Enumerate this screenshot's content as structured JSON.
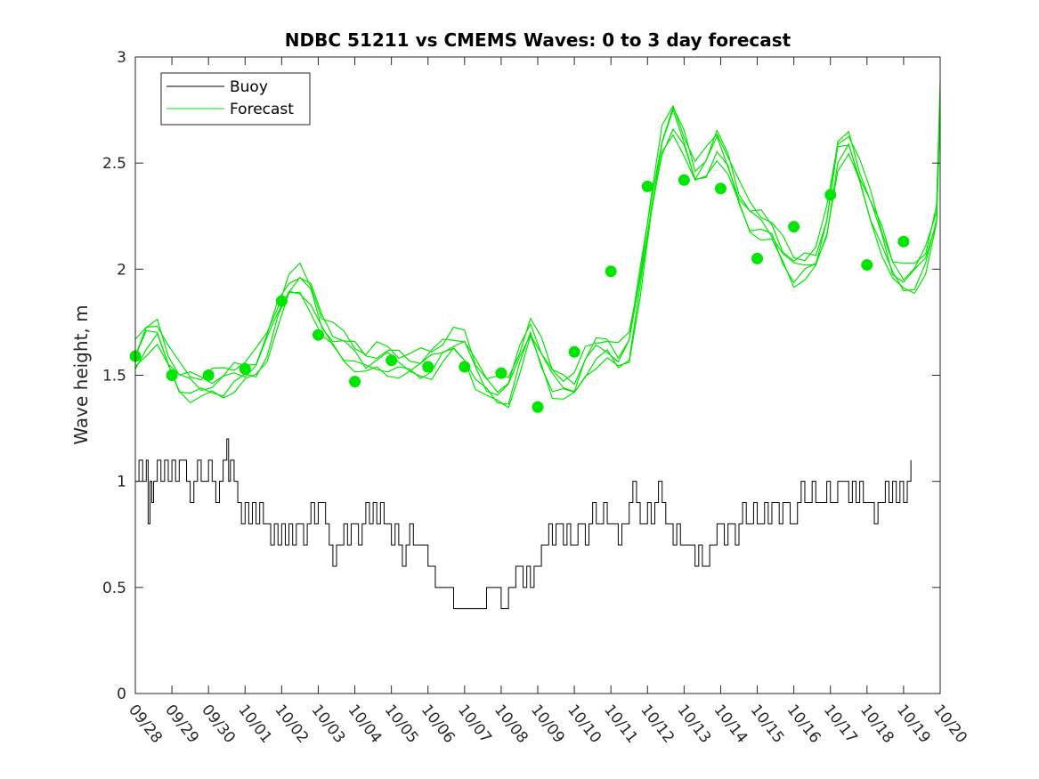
{
  "chart_data": {
    "type": "line",
    "title": "NDBC 51211 vs CMEMS Waves: 0 to 3 day forecast",
    "xlabel": "",
    "ylabel": "Wave height, m",
    "x_tick_labels": [
      "09/28",
      "09/29",
      "09/30",
      "10/01",
      "10/02",
      "10/03",
      "10/04",
      "10/05",
      "10/06",
      "10/07",
      "10/08",
      "10/09",
      "10/10",
      "10/11",
      "10/12",
      "10/13",
      "10/14",
      "10/15",
      "10/16",
      "10/17",
      "10/18",
      "10/19",
      "10/20"
    ],
    "x_ticks_day_index": [
      0,
      1,
      2,
      3,
      4,
      5,
      6,
      7,
      8,
      9,
      10,
      11,
      12,
      13,
      14,
      15,
      16,
      17,
      18,
      19,
      20,
      21,
      22
    ],
    "xlim_day_index": [
      0,
      22
    ],
    "ylim": [
      0,
      3
    ],
    "y_ticks": [
      0,
      0.5,
      1,
      1.5,
      2,
      2.5,
      3
    ],
    "grid": false,
    "legend_placement": "top-left",
    "colors": {
      "buoy": "#000000",
      "forecast": "#00e600"
    },
    "series": [
      {
        "name": "Buoy",
        "kind": "line",
        "x_day_index": [
          0,
          0.1,
          0.2,
          0.3,
          0.35,
          0.4,
          0.45,
          0.5,
          0.6,
          0.7,
          0.8,
          0.9,
          1.0,
          1.1,
          1.2,
          1.3,
          1.4,
          1.5,
          1.6,
          1.7,
          1.8,
          1.9,
          2.0,
          2.1,
          2.2,
          2.3,
          2.4,
          2.5,
          2.55,
          2.6,
          2.7,
          2.8,
          2.9,
          3.0,
          3.1,
          3.2,
          3.3,
          3.4,
          3.5,
          3.6,
          3.7,
          3.8,
          3.9,
          4.0,
          4.1,
          4.2,
          4.3,
          4.4,
          4.5,
          4.6,
          4.7,
          4.8,
          4.9,
          5.0,
          5.1,
          5.2,
          5.3,
          5.4,
          5.5,
          5.6,
          5.7,
          5.8,
          5.9,
          6.0,
          6.1,
          6.2,
          6.3,
          6.4,
          6.5,
          6.6,
          6.7,
          6.8,
          6.9,
          7.0,
          7.1,
          7.2,
          7.3,
          7.4,
          7.5,
          7.6,
          7.7,
          7.8,
          7.9,
          8.0,
          8.1,
          8.2,
          8.3,
          8.4,
          8.5,
          8.6,
          8.7,
          8.8,
          8.9,
          9.0,
          9.1,
          9.2,
          9.3,
          9.4,
          9.5,
          9.6,
          9.7,
          9.8,
          9.9,
          10.0,
          10.1,
          10.2,
          10.3,
          10.4,
          10.5,
          10.6,
          10.7,
          10.8,
          10.9,
          11.0,
          11.1,
          11.2,
          11.3,
          11.4,
          11.5,
          11.6,
          11.7,
          11.8,
          11.9,
          12.0,
          12.1,
          12.2,
          12.3,
          12.4,
          12.5,
          12.6,
          12.7,
          12.8,
          12.9,
          13.0,
          13.1,
          13.2,
          13.3,
          13.4,
          13.5,
          13.6,
          13.7,
          13.8,
          13.9,
          14.0,
          14.1,
          14.2,
          14.3,
          14.4,
          14.5,
          14.6,
          14.7,
          14.8,
          14.9,
          15.0,
          15.1,
          15.2,
          15.3,
          15.4,
          15.5,
          15.6,
          15.7,
          15.8,
          15.9,
          16.0,
          16.1,
          16.2,
          16.3,
          16.4,
          16.5,
          16.6,
          16.7,
          16.8,
          16.9,
          17.0,
          17.1,
          17.2,
          17.3,
          17.4,
          17.5,
          17.6,
          17.7,
          17.8,
          17.9,
          18.0,
          18.1,
          18.2,
          18.3,
          18.4,
          18.5,
          18.6,
          18.7,
          18.8,
          18.9,
          19.0,
          19.1,
          19.2,
          19.3,
          19.4,
          19.5,
          19.6,
          19.7,
          19.8,
          19.9,
          20.0,
          20.1,
          20.2,
          20.3,
          20.4,
          20.5,
          20.6,
          20.7,
          20.8,
          20.9,
          21.0,
          21.1,
          21.2,
          21.3
        ],
        "values": [
          1.0,
          1.1,
          1.0,
          1.1,
          0.8,
          1.0,
          0.9,
          1.0,
          1.1,
          1.0,
          1.1,
          1.0,
          1.1,
          1.0,
          1.1,
          1.1,
          1.0,
          0.9,
          1.0,
          1.1,
          1.0,
          1.0,
          1.1,
          1.0,
          0.9,
          1.0,
          1.1,
          1.2,
          1.0,
          1.1,
          1.0,
          0.9,
          0.8,
          0.9,
          0.8,
          0.9,
          0.8,
          0.9,
          0.8,
          0.8,
          0.7,
          0.8,
          0.7,
          0.8,
          0.7,
          0.8,
          0.7,
          0.8,
          0.8,
          0.7,
          0.8,
          0.9,
          0.8,
          0.9,
          0.9,
          0.8,
          0.7,
          0.6,
          0.7,
          0.7,
          0.8,
          0.7,
          0.8,
          0.8,
          0.7,
          0.8,
          0.9,
          0.8,
          0.9,
          0.8,
          0.9,
          0.8,
          0.8,
          0.7,
          0.8,
          0.7,
          0.6,
          0.7,
          0.8,
          0.7,
          0.7,
          0.7,
          0.7,
          0.6,
          0.6,
          0.5,
          0.5,
          0.5,
          0.5,
          0.5,
          0.4,
          0.4,
          0.4,
          0.4,
          0.4,
          0.4,
          0.4,
          0.4,
          0.4,
          0.5,
          0.5,
          0.5,
          0.5,
          0.4,
          0.4,
          0.5,
          0.5,
          0.6,
          0.6,
          0.5,
          0.6,
          0.5,
          0.6,
          0.6,
          0.7,
          0.7,
          0.8,
          0.7,
          0.8,
          0.8,
          0.7,
          0.8,
          0.7,
          0.7,
          0.8,
          0.8,
          0.7,
          0.8,
          0.9,
          0.8,
          0.8,
          0.9,
          0.8,
          0.8,
          0.8,
          0.7,
          0.8,
          0.8,
          0.9,
          1.0,
          0.9,
          0.8,
          0.8,
          0.9,
          0.8,
          0.9,
          1.0,
          0.9,
          0.8,
          0.8,
          0.7,
          0.8,
          0.7,
          0.7,
          0.7,
          0.7,
          0.6,
          0.7,
          0.6,
          0.6,
          0.7,
          0.7,
          0.8,
          0.8,
          0.7,
          0.8,
          0.8,
          0.7,
          0.8,
          0.9,
          0.8,
          0.8,
          0.9,
          0.8,
          0.8,
          0.9,
          0.8,
          0.9,
          0.9,
          0.8,
          0.9,
          0.9,
          0.8,
          0.8,
          0.9,
          1.0,
          0.9,
          0.9,
          1.0,
          0.9,
          0.9,
          0.9,
          1.0,
          0.9,
          0.9,
          1.0,
          1.0,
          1.0,
          0.9,
          1.0,
          0.9,
          1.0,
          0.9,
          0.9,
          0.9,
          0.8,
          0.9,
          0.9,
          1.0,
          0.9,
          1.0,
          0.9,
          1.0,
          0.9,
          1.0,
          1.1
        ]
      },
      {
        "name": "Forecast",
        "kind": "line",
        "x_day_index": [
          0,
          0.3,
          0.6,
          0.9,
          1.2,
          1.5,
          1.8,
          2.1,
          2.4,
          2.7,
          3.0,
          3.3,
          3.6,
          3.9,
          4.2,
          4.5,
          4.8,
          5.1,
          5.4,
          5.7,
          6.0,
          6.3,
          6.6,
          6.9,
          7.2,
          7.5,
          7.8,
          8.1,
          8.4,
          8.7,
          9.0,
          9.3,
          9.6,
          9.9,
          10.2,
          10.5,
          10.8,
          11.1,
          11.4,
          11.7,
          12.0,
          12.3,
          12.6,
          12.9,
          13.2,
          13.5,
          13.8,
          14.1,
          14.4,
          14.7,
          15.0,
          15.3,
          15.6,
          15.9,
          16.2,
          16.5,
          16.8,
          17.1,
          17.4,
          17.7,
          18.0,
          18.3,
          18.6,
          18.9,
          19.2,
          19.5,
          19.8,
          20.1,
          20.4,
          20.7,
          21.0,
          21.3,
          21.6,
          21.9,
          22.0
        ],
        "values": [
          1.59,
          1.68,
          1.71,
          1.58,
          1.49,
          1.46,
          1.45,
          1.46,
          1.47,
          1.5,
          1.52,
          1.55,
          1.65,
          1.8,
          1.92,
          1.95,
          1.88,
          1.74,
          1.68,
          1.64,
          1.6,
          1.56,
          1.58,
          1.58,
          1.56,
          1.55,
          1.55,
          1.57,
          1.62,
          1.66,
          1.64,
          1.52,
          1.45,
          1.42,
          1.43,
          1.58,
          1.72,
          1.6,
          1.48,
          1.45,
          1.45,
          1.56,
          1.62,
          1.63,
          1.58,
          1.64,
          1.95,
          2.3,
          2.6,
          2.72,
          2.6,
          2.45,
          2.5,
          2.6,
          2.5,
          2.35,
          2.25,
          2.22,
          2.18,
          2.08,
          2.0,
          2.02,
          2.05,
          2.22,
          2.55,
          2.6,
          2.45,
          2.3,
          2.15,
          2.0,
          1.95,
          1.97,
          2.05,
          2.25,
          2.8
        ]
      },
      {
        "name": "",
        "kind": "markers",
        "x_day_index": [
          0,
          1,
          2,
          3,
          4,
          5,
          6,
          7,
          8,
          9,
          10,
          11,
          12,
          13,
          14,
          15,
          16,
          17,
          18,
          19,
          20,
          21
        ],
        "values": [
          1.59,
          1.5,
          1.5,
          1.53,
          1.85,
          1.69,
          1.47,
          1.57,
          1.54,
          1.54,
          1.51,
          1.35,
          1.61,
          1.99,
          2.39,
          2.42,
          2.38,
          2.05,
          2.2,
          2.35,
          2.02,
          2.13
        ]
      }
    ]
  },
  "legend": {
    "items": [
      {
        "label": "Buoy",
        "color": "#000000"
      },
      {
        "label": "Forecast",
        "color": "#00e600"
      }
    ]
  }
}
